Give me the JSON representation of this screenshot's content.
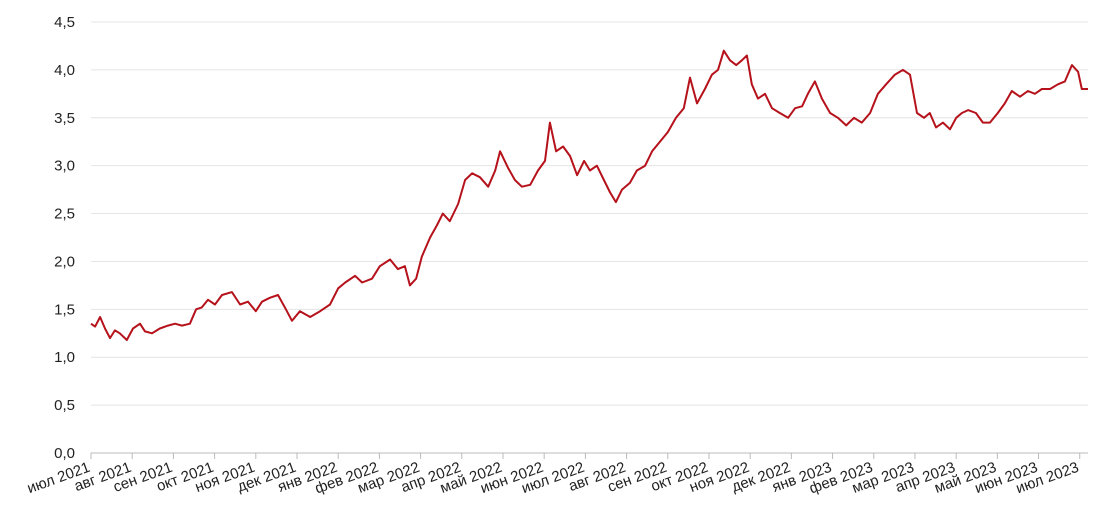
{
  "chart_data": {
    "type": "line",
    "series": [
      {
        "color": "#b5121b",
        "x": [
          0,
          0.1,
          0.22,
          0.34,
          0.46,
          0.58,
          0.7,
          0.87,
          1.02,
          1.19,
          1.31,
          1.48,
          1.67,
          1.87,
          2.04,
          2.21,
          2.4,
          2.55,
          2.69,
          2.84,
          3.01,
          3.18,
          3.42,
          3.62,
          3.81,
          4.0,
          4.15,
          4.34,
          4.54,
          4.73,
          4.88,
          5.07,
          5.32,
          5.56,
          5.8,
          6.0,
          6.17,
          6.41,
          6.58,
          6.82,
          7.01,
          7.26,
          7.45,
          7.62,
          7.74,
          7.89,
          8.03,
          8.23,
          8.4,
          8.54,
          8.71,
          8.91,
          9.08,
          9.25,
          9.44,
          9.64,
          9.81,
          9.93,
          10.12,
          10.29,
          10.46,
          10.66,
          10.85,
          11.02,
          11.14,
          11.29,
          11.46,
          11.63,
          11.8,
          11.97,
          12.11,
          12.28,
          12.45,
          12.6,
          12.74,
          12.89,
          13.08,
          13.25,
          13.45,
          13.62,
          13.81,
          14.0,
          14.2,
          14.39,
          14.54,
          14.71,
          14.9,
          15.07,
          15.22,
          15.36,
          15.51,
          15.66,
          15.8,
          15.92,
          16.04,
          16.19,
          16.36,
          16.53,
          16.72,
          16.92,
          17.09,
          17.26,
          17.4,
          17.57,
          17.74,
          17.94,
          18.13,
          18.33,
          18.52,
          18.71,
          18.91,
          19.1,
          19.3,
          19.51,
          19.71,
          19.88,
          20.05,
          20.22,
          20.36,
          20.51,
          20.68,
          20.85,
          21.0,
          21.14,
          21.29,
          21.48,
          21.65,
          21.82,
          22.01,
          22.18,
          22.35,
          22.55,
          22.74,
          22.91,
          23.08,
          23.28,
          23.47,
          23.64,
          23.81,
          23.96,
          24.05,
          24.2
        ],
        "values": [
          1.35,
          1.32,
          1.42,
          1.3,
          1.2,
          1.28,
          1.25,
          1.18,
          1.3,
          1.35,
          1.27,
          1.25,
          1.3,
          1.33,
          1.35,
          1.33,
          1.35,
          1.5,
          1.52,
          1.6,
          1.55,
          1.65,
          1.68,
          1.55,
          1.58,
          1.48,
          1.58,
          1.62,
          1.65,
          1.5,
          1.38,
          1.48,
          1.42,
          1.48,
          1.55,
          1.72,
          1.78,
          1.85,
          1.78,
          1.82,
          1.95,
          2.02,
          1.92,
          1.95,
          1.75,
          1.82,
          2.05,
          2.25,
          2.38,
          2.5,
          2.42,
          2.6,
          2.85,
          2.92,
          2.88,
          2.78,
          2.95,
          3.15,
          2.98,
          2.85,
          2.78,
          2.8,
          2.95,
          3.05,
          3.45,
          3.15,
          3.2,
          3.1,
          2.9,
          3.05,
          2.95,
          3.0,
          2.85,
          2.72,
          2.62,
          2.75,
          2.82,
          2.95,
          3.0,
          3.15,
          3.25,
          3.35,
          3.5,
          3.6,
          3.92,
          3.65,
          3.8,
          3.95,
          4.0,
          4.2,
          4.1,
          4.05,
          4.1,
          4.15,
          3.85,
          3.7,
          3.75,
          3.6,
          3.55,
          3.5,
          3.6,
          3.62,
          3.75,
          3.88,
          3.7,
          3.55,
          3.5,
          3.42,
          3.5,
          3.45,
          3.55,
          3.75,
          3.85,
          3.95,
          4.0,
          3.95,
          3.55,
          3.5,
          3.55,
          3.4,
          3.45,
          3.38,
          3.5,
          3.55,
          3.58,
          3.55,
          3.45,
          3.45,
          3.55,
          3.65,
          3.78,
          3.72,
          3.78,
          3.75,
          3.8,
          3.8,
          3.85,
          3.88,
          4.05,
          3.98,
          3.8,
          3.8
        ]
      }
    ],
    "xlim": [
      0,
      24.2
    ],
    "xticks": [
      {
        "value": 0,
        "label": "июл 2021"
      },
      {
        "value": 1,
        "label": "авг 2021"
      },
      {
        "value": 2,
        "label": "сен 2021"
      },
      {
        "value": 3,
        "label": "окт 2021"
      },
      {
        "value": 4,
        "label": "ноя 2021"
      },
      {
        "value": 5,
        "label": "дек 2021"
      },
      {
        "value": 6,
        "label": "янв 2022"
      },
      {
        "value": 7,
        "label": "фев 2022"
      },
      {
        "value": 8,
        "label": "мар 2022"
      },
      {
        "value": 9,
        "label": "апр 2022"
      },
      {
        "value": 10,
        "label": "май 2022"
      },
      {
        "value": 11,
        "label": "июн 2022"
      },
      {
        "value": 12,
        "label": "июл 2022"
      },
      {
        "value": 13,
        "label": "авг 2022"
      },
      {
        "value": 14,
        "label": "сен 2022"
      },
      {
        "value": 15,
        "label": "окт 2022"
      },
      {
        "value": 16,
        "label": "ноя 2022"
      },
      {
        "value": 17,
        "label": "дек 2022"
      },
      {
        "value": 18,
        "label": "янв 2023"
      },
      {
        "value": 19,
        "label": "фев 2023"
      },
      {
        "value": 20,
        "label": "мар 2023"
      },
      {
        "value": 21,
        "label": "апр 2023"
      },
      {
        "value": 22,
        "label": "май 2023"
      },
      {
        "value": 23,
        "label": "июн 2023"
      },
      {
        "value": 24,
        "label": "июл 2023"
      }
    ],
    "ylim": [
      0,
      4.5
    ],
    "yticks": [
      {
        "value": 0,
        "label": "0,0"
      },
      {
        "value": 0.5,
        "label": "0,5"
      },
      {
        "value": 1,
        "label": "1,0"
      },
      {
        "value": 1.5,
        "label": "1,5"
      },
      {
        "value": 2,
        "label": "2,0"
      },
      {
        "value": 2.5,
        "label": "2,5"
      },
      {
        "value": 3,
        "label": "3,0"
      },
      {
        "value": 3.5,
        "label": "3,5"
      },
      {
        "value": 4,
        "label": "4,0"
      },
      {
        "value": 4.5,
        "label": "4,5"
      }
    ],
    "grid": true
  }
}
